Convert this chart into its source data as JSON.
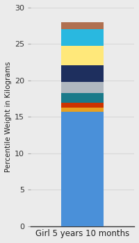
{
  "category": "Girl 5 years 10 months",
  "segments": [
    {
      "value": 15.7,
      "color": "#4a90d9"
    },
    {
      "value": 0.55,
      "color": "#e8a020"
    },
    {
      "value": 0.65,
      "color": "#cc3300"
    },
    {
      "value": 1.4,
      "color": "#1a7a8a"
    },
    {
      "value": 1.5,
      "color": "#b0b8c0"
    },
    {
      "value": 2.3,
      "color": "#1e2f5e"
    },
    {
      "value": 2.7,
      "color": "#ffe87a"
    },
    {
      "value": 2.2,
      "color": "#29b8e0"
    },
    {
      "value": 1.0,
      "color": "#b07050"
    }
  ],
  "ylabel": "Percentile Weight in Kilograms",
  "ylim": [
    0,
    30
  ],
  "yticks": [
    0,
    5,
    10,
    15,
    20,
    25,
    30
  ],
  "background_color": "#ebebeb",
  "plot_bg_color": "#ebebeb",
  "xlabel_color": "#222222",
  "ylabel_color": "#222222",
  "ylabel_fontsize": 7.5,
  "xlabel_fontsize": 8.5,
  "bar_width": 0.45,
  "grid_color": "#d8d8d8"
}
